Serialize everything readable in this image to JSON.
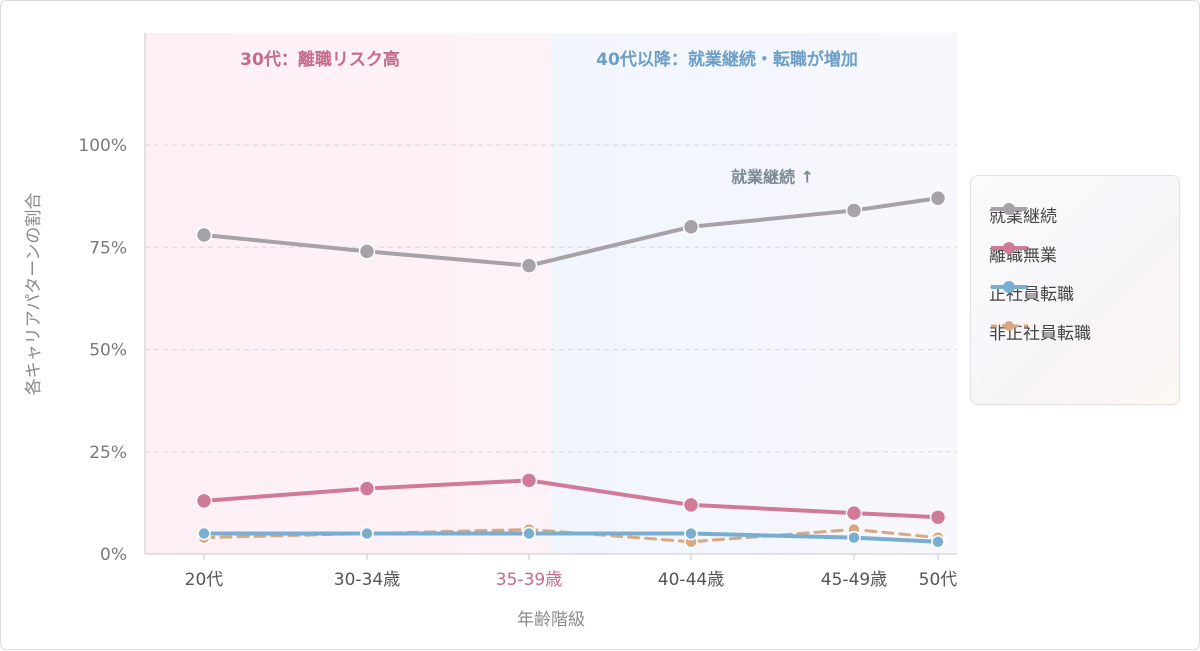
{
  "chart_data": {
    "type": "line",
    "categories": [
      "20代",
      "30-34歳",
      "35-39歳",
      "40-44歳",
      "45-49歳",
      "50代"
    ],
    "highlight_category": "35-39歳",
    "xlabel": "年齢階級",
    "ylabel": "各キャリアパターンの割合",
    "ylim": [
      0,
      1.0
    ],
    "yticks": [
      {
        "value": 0,
        "label": "0%"
      },
      {
        "value": 0.25,
        "label": "25%"
      },
      {
        "value": 0.5,
        "label": "50%"
      },
      {
        "value": 0.75,
        "label": "75%"
      },
      {
        "value": 1.0,
        "label": "100%"
      }
    ],
    "grid": true,
    "legend_position": "right",
    "series": [
      {
        "name": "就業継続",
        "values": [
          0.78,
          0.74,
          0.705,
          0.8,
          0.84,
          0.87
        ],
        "color": "#a7a2a8",
        "dashed": false
      },
      {
        "name": "離職無業",
        "values": [
          0.13,
          0.16,
          0.18,
          0.12,
          0.1,
          0.09
        ],
        "color": "#d17a98",
        "dashed": false
      },
      {
        "name": "正社員転職",
        "values": [
          0.05,
          0.05,
          0.05,
          0.05,
          0.04,
          0.03
        ],
        "color": "#7aaed0",
        "dashed": false
      },
      {
        "name": "非正社員転職",
        "values": [
          0.04,
          0.05,
          0.06,
          0.03,
          0.06,
          0.04
        ],
        "color": "#d8a882",
        "dashed": true
      }
    ],
    "regions": [
      {
        "from_value": 0,
        "to_value": 0.5,
        "label": "30代：離職リスク高",
        "color": "#c46a8a",
        "fill": "#fdeff5"
      },
      {
        "from_value": 0.5,
        "to_value": 1.0,
        "label": "40代以降：就業継続・転職が増加",
        "color": "#6c9ec6",
        "fill": "#f1f5fd"
      }
    ],
    "annotations": [
      {
        "text": "就業継続 ↑",
        "x_category": "45-49歳",
        "y_value": 0.92,
        "color": "#7b8a95"
      }
    ]
  }
}
